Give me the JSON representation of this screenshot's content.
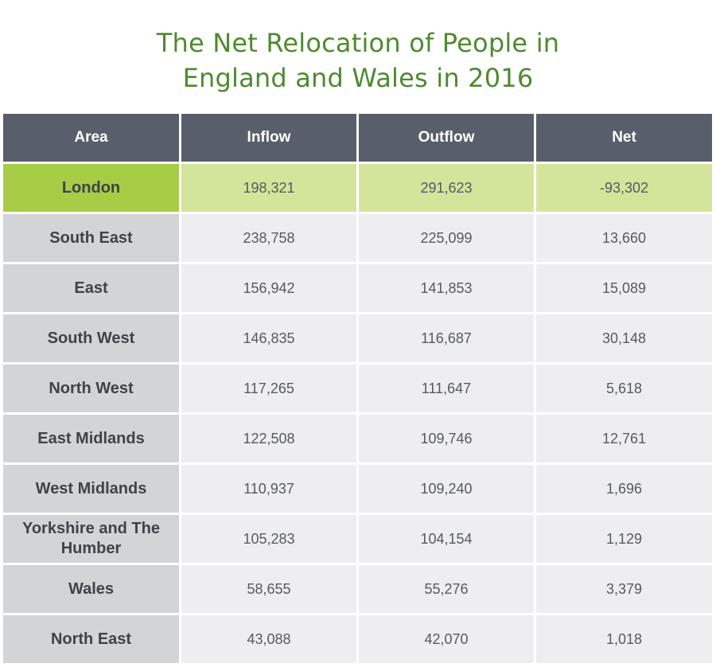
{
  "title": [
    "The Net Relocation of People in",
    "England and Wales in 2016"
  ],
  "colors": {
    "title": "#4f8a2e",
    "header_bg": "#585f6b",
    "area_bg": "#d3d4d6",
    "value_bg": "#eeeef0",
    "highlight_area_bg": "#a7cc46",
    "highlight_value_bg": "#d3e59b"
  },
  "chart_data": {
    "type": "table",
    "title": "The Net Relocation of People in England and Wales in 2016",
    "columns": [
      "Area",
      "Inflow",
      "Outflow",
      "Net"
    ],
    "highlighted_row": "London",
    "rows": [
      {
        "area": "London",
        "inflow": "198,321",
        "outflow": "291,623",
        "net": "-93,302"
      },
      {
        "area": "South East",
        "inflow": "238,758",
        "outflow": "225,099",
        "net": "13,660"
      },
      {
        "area": "East",
        "inflow": "156,942",
        "outflow": "141,853",
        "net": "15,089"
      },
      {
        "area": "South West",
        "inflow": "146,835",
        "outflow": "116,687",
        "net": "30,148"
      },
      {
        "area": "North West",
        "inflow": "117,265",
        "outflow": "111,647",
        "net": "5,618"
      },
      {
        "area": "East Midlands",
        "inflow": "122,508",
        "outflow": "109,746",
        "net": "12,761"
      },
      {
        "area": "West Midlands",
        "inflow": "110,937",
        "outflow": "109,240",
        "net": "1,696"
      },
      {
        "area": "Yorkshire and The Humber",
        "inflow": "105,283",
        "outflow": "104,154",
        "net": "1,129"
      },
      {
        "area": "Wales",
        "inflow": "58,655",
        "outflow": "55,276",
        "net": "3,379"
      },
      {
        "area": "North East",
        "inflow": "43,088",
        "outflow": "42,070",
        "net": "1,018"
      }
    ]
  }
}
